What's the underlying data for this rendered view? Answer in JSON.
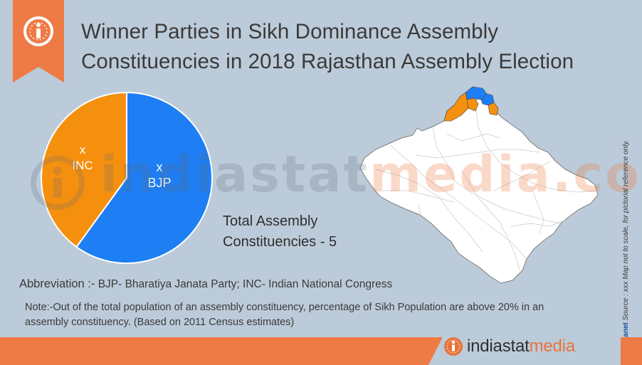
{
  "title": {
    "line1": "Winner Parties in Sikh Dominance Assembly",
    "line2": "Constituencies in 2018 Rajasthan Assembly Election"
  },
  "colors": {
    "bjp": "#1e7ef4",
    "inc": "#f5900f",
    "accent": "#ee7a45",
    "background": "#bccbd9"
  },
  "pie": {
    "slices": [
      {
        "party": "BJP",
        "value_label": "x",
        "fraction": 0.6
      },
      {
        "party": "INC",
        "value_label": "x",
        "fraction": 0.4
      }
    ]
  },
  "total": {
    "line1": "Total Assembly",
    "line2": "Constituencies - 5"
  },
  "abbreviation": {
    "key": "Abbreviation :-",
    "text": " BJP- Bharatiya Janata Party; INC- Indian National Congress"
  },
  "note": "Note:-Out of the total population of an assembly constituency, percentage of Sikh Population are above 20% in an assembly constituency. (Based on 2011 Census estimates)",
  "side_note": {
    "brand": "Datanet",
    "text": " Source : xxx  Map not to scale, for pictorial reference only."
  },
  "watermark": {
    "part1": "indiastat",
    "part2": "media.com"
  },
  "footer": {
    "logo_part1": "indiastat",
    "logo_part2": "media"
  },
  "icons": {
    "badge": "info-icon",
    "footer": "info-icon"
  }
}
